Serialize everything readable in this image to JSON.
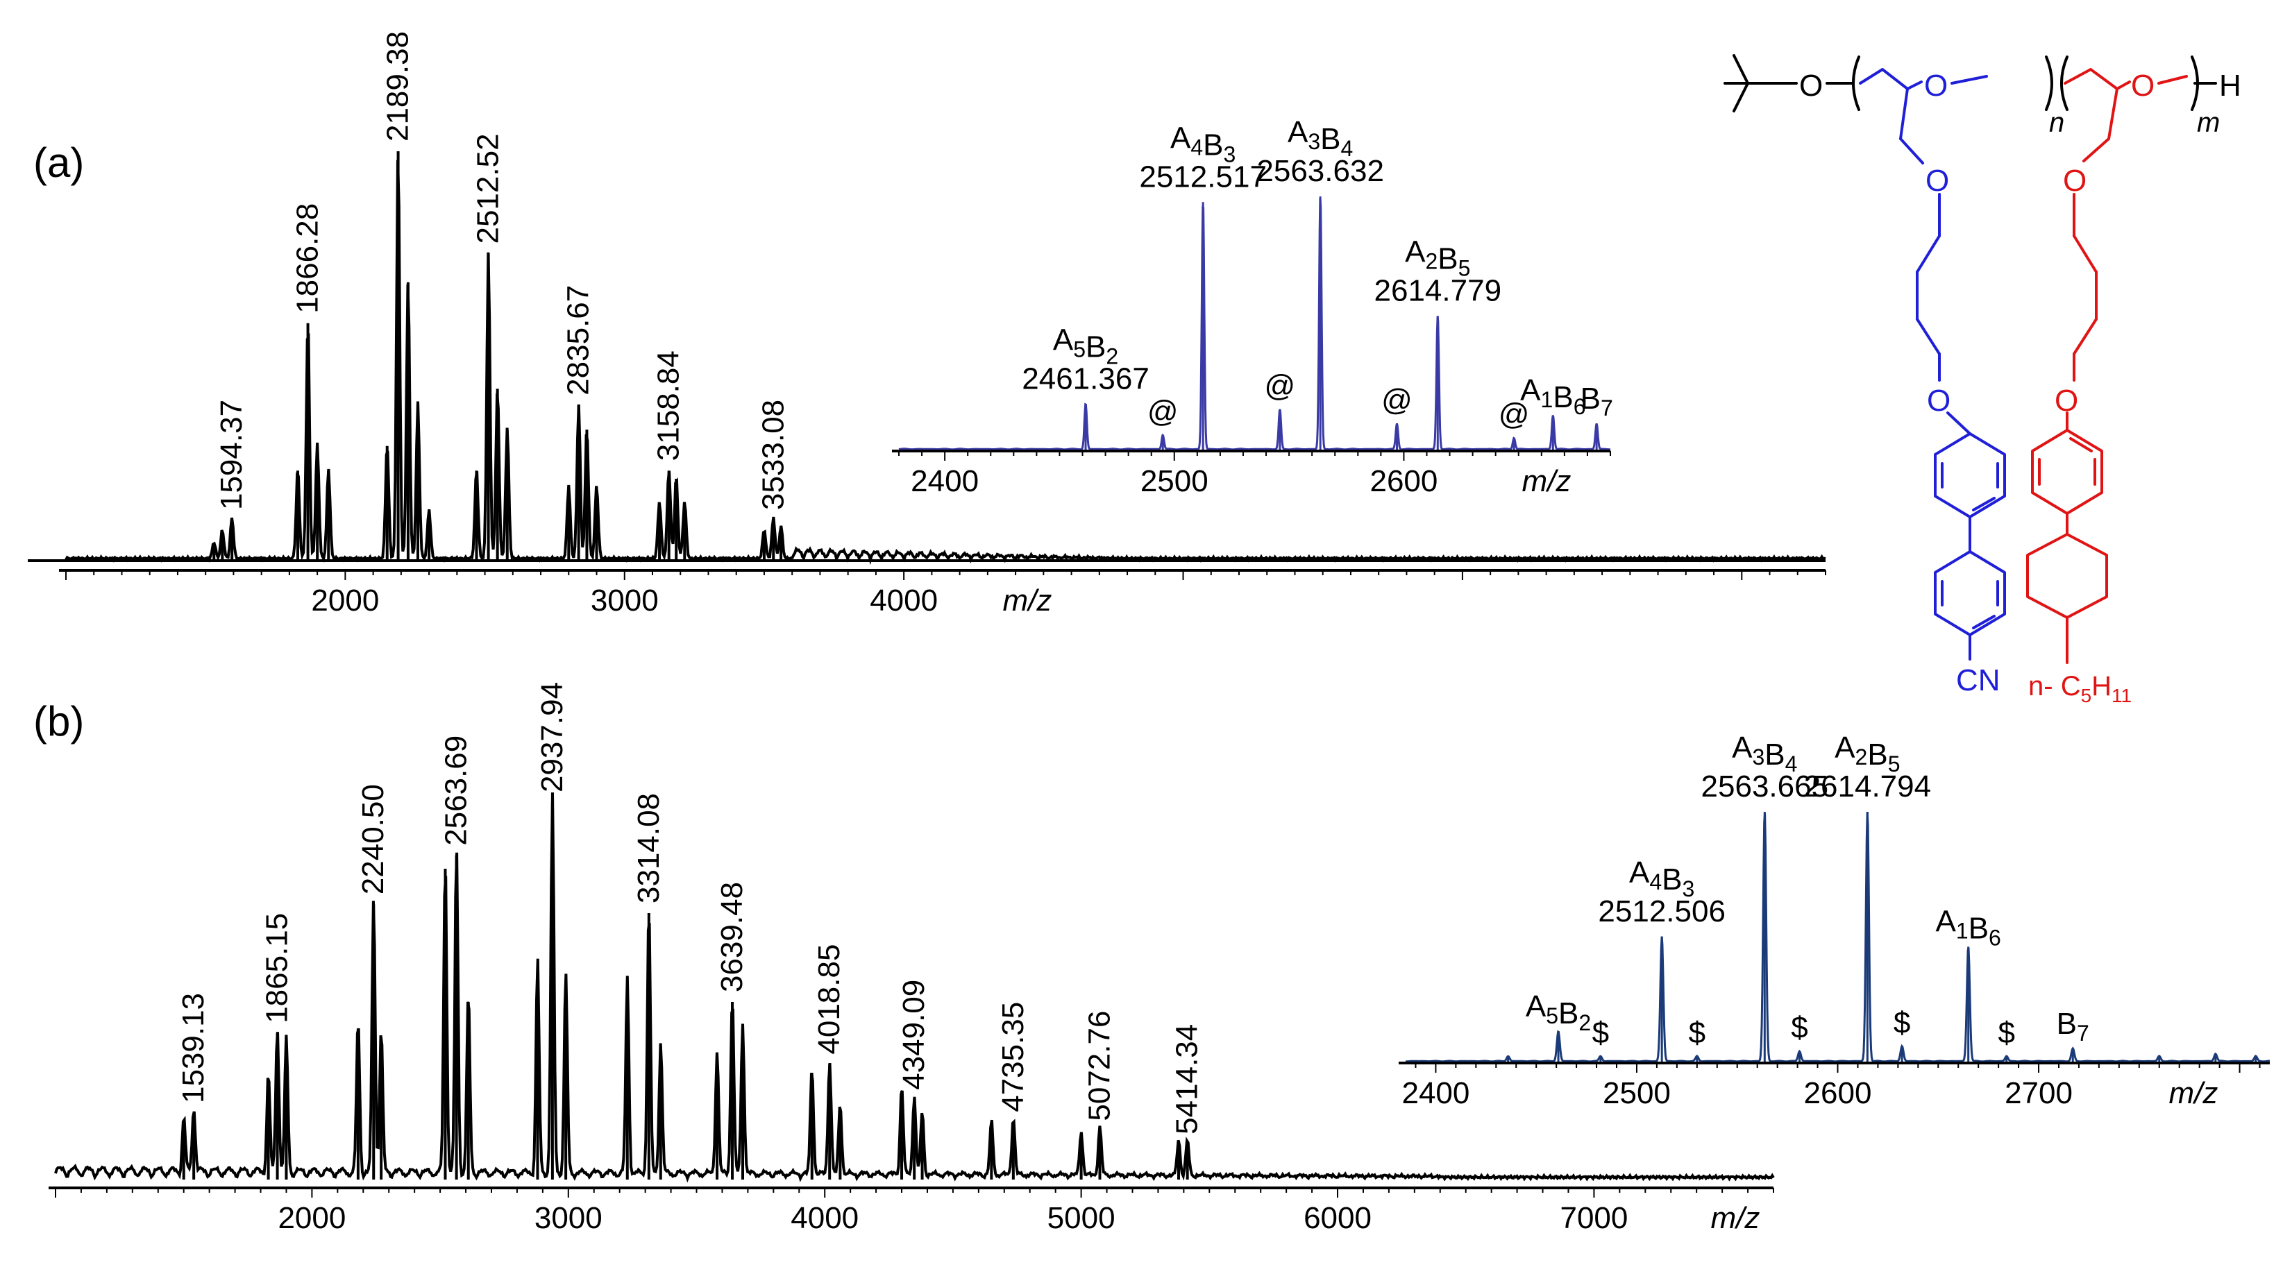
{
  "panels": {
    "a": {
      "label": "(a)"
    },
    "b": {
      "label": "(b)"
    }
  },
  "colors": {
    "main_spectrum": "#000000",
    "inset_a": "#3a3aa6",
    "inset_b": "#1a3a78",
    "blue_segment": "#1f1fd8",
    "red_segment": "#e01414"
  },
  "structure": {
    "end_group_O": "O",
    "ether_O": "O",
    "terminal_H": "H",
    "subscript_n": "n",
    "subscript_m": "m",
    "cyano": "CN",
    "alkyl_prefix": "n- ",
    "alkyl_C": "C",
    "alkyl_C_sub": "5",
    "alkyl_H": "H",
    "alkyl_H_sub": "11"
  },
  "chart_data": [
    {
      "id": "a_main",
      "type": "line",
      "title": "",
      "xlabel": "m/z",
      "ylabel": "",
      "xlim": [
        1000,
        7300
      ],
      "ylim": [
        0,
        100
      ],
      "xticks": [
        2000,
        3000,
        4000
      ],
      "peaks": [
        [
          1530,
          4
        ],
        [
          1560,
          7
        ],
        [
          1594.37,
          10
        ],
        [
          1830,
          22
        ],
        [
          1866.28,
          58
        ],
        [
          1900,
          28
        ],
        [
          1940,
          22
        ],
        [
          2150,
          28
        ],
        [
          2189.38,
          100
        ],
        [
          2225,
          68
        ],
        [
          2260,
          38
        ],
        [
          2300,
          12
        ],
        [
          2470,
          22
        ],
        [
          2512.52,
          75
        ],
        [
          2545,
          42
        ],
        [
          2580,
          32
        ],
        [
          2800,
          18
        ],
        [
          2835.67,
          38
        ],
        [
          2865,
          32
        ],
        [
          2900,
          18
        ],
        [
          3125,
          14
        ],
        [
          3158.84,
          22
        ],
        [
          3185,
          20
        ],
        [
          3215,
          14
        ],
        [
          3500,
          7
        ],
        [
          3533.08,
          10
        ],
        [
          3560,
          8
        ]
      ],
      "labels": [
        {
          "x": 1594.37,
          "text": "1594.37"
        },
        {
          "x": 1866.28,
          "text": "1866.28"
        },
        {
          "x": 2189.38,
          "text": "2189.38"
        },
        {
          "x": 2512.52,
          "text": "2512.52"
        },
        {
          "x": 2835.67,
          "text": "2835.67"
        },
        {
          "x": 3158.84,
          "text": "3158.84"
        },
        {
          "x": 3533.08,
          "text": "3533.08"
        }
      ]
    },
    {
      "id": "a_inset",
      "type": "line",
      "xlabel": "m/z",
      "xlim": [
        2380,
        2690
      ],
      "ylim": [
        0,
        100
      ],
      "xticks": [
        2400,
        2500,
        2600
      ],
      "peaks": [
        [
          2461.367,
          16
        ],
        [
          2495,
          5
        ],
        [
          2512.517,
          87
        ],
        [
          2546,
          14
        ],
        [
          2563.632,
          89
        ],
        [
          2597,
          9
        ],
        [
          2614.779,
          47
        ],
        [
          2648,
          4
        ],
        [
          2665,
          12
        ],
        [
          2684,
          9
        ]
      ],
      "labels": [
        {
          "x": 2461.367,
          "ion": "A5B2",
          "mass": "2461.367"
        },
        {
          "x": 2512.517,
          "ion": "A4B3",
          "mass": "2512.517"
        },
        {
          "x": 2563.632,
          "ion": "A3B4",
          "mass": "2563.632"
        },
        {
          "x": 2614.779,
          "ion": "A2B5",
          "mass": "2614.779"
        },
        {
          "x": 2665,
          "ion": "A1B6",
          "mass": ""
        },
        {
          "x": 2684,
          "ion": "B7",
          "mass": ""
        }
      ],
      "markers": [
        {
          "x": 2495,
          "text": "@"
        },
        {
          "x": 2546,
          "text": "@"
        },
        {
          "x": 2597,
          "text": "@"
        },
        {
          "x": 2648,
          "text": "@"
        }
      ]
    },
    {
      "id": "b_main",
      "type": "line",
      "xlabel": "m/z",
      "xlim": [
        1000,
        7700
      ],
      "ylim": [
        0,
        100
      ],
      "xticks": [
        2000,
        3000,
        4000,
        5000,
        6000,
        7000
      ],
      "peaks": [
        [
          1500,
          12
        ],
        [
          1539.13,
          15
        ],
        [
          1830,
          22
        ],
        [
          1865.15,
          33
        ],
        [
          1900,
          30
        ],
        [
          2180,
          34
        ],
        [
          2240.5,
          62
        ],
        [
          2270,
          32
        ],
        [
          2520,
          70
        ],
        [
          2563.69,
          73
        ],
        [
          2610,
          40
        ],
        [
          2880,
          48
        ],
        [
          2937.94,
          85
        ],
        [
          2990,
          45
        ],
        [
          3230,
          44
        ],
        [
          3314.08,
          60
        ],
        [
          3360,
          30
        ],
        [
          3580,
          28
        ],
        [
          3639.48,
          40
        ],
        [
          3680,
          34
        ],
        [
          3950,
          24
        ],
        [
          4018.85,
          26
        ],
        [
          4060,
          16
        ],
        [
          4300,
          20
        ],
        [
          4349.09,
          18
        ],
        [
          4380,
          14
        ],
        [
          4650,
          12
        ],
        [
          4735.35,
          13
        ],
        [
          5000,
          10
        ],
        [
          5072.76,
          11
        ],
        [
          5380,
          8
        ],
        [
          5414.34,
          8
        ]
      ],
      "labels": [
        {
          "x": 1539.13,
          "text": "1539.13"
        },
        {
          "x": 1865.15,
          "text": "1865.15"
        },
        {
          "x": 2240.5,
          "text": "2240.50"
        },
        {
          "x": 2563.69,
          "text": "2563.69"
        },
        {
          "x": 2937.94,
          "text": "2937.94"
        },
        {
          "x": 3314.08,
          "text": "3314.08"
        },
        {
          "x": 3639.48,
          "text": "3639.48"
        },
        {
          "x": 4018.85,
          "text": "4018.85"
        },
        {
          "x": 4349.09,
          "text": "4349.09"
        },
        {
          "x": 4735.35,
          "text": "4735.35"
        },
        {
          "x": 5072.76,
          "text": "5072.76"
        },
        {
          "x": 5414.34,
          "text": "5414.34"
        }
      ]
    },
    {
      "id": "b_inset",
      "type": "line",
      "xlabel": "m/z",
      "xlim": [
        2385,
        2815
      ],
      "ylim": [
        0,
        100
      ],
      "xticks": [
        2400,
        2500,
        2600,
        2700
      ],
      "peaks": [
        [
          2436,
          2
        ],
        [
          2461,
          12
        ],
        [
          2482,
          2
        ],
        [
          2512.506,
          50
        ],
        [
          2530,
          2
        ],
        [
          2563.665,
          100
        ],
        [
          2581,
          4
        ],
        [
          2614.794,
          100
        ],
        [
          2632,
          6
        ],
        [
          2665,
          46
        ],
        [
          2684,
          2
        ],
        [
          2717,
          5
        ],
        [
          2760,
          2
        ],
        [
          2788,
          3
        ],
        [
          2808,
          2
        ]
      ],
      "labels": [
        {
          "x": 2461,
          "ion": "A5B2",
          "mass": ""
        },
        {
          "x": 2512.506,
          "ion": "A4B3",
          "mass": "2512.506"
        },
        {
          "x": 2563.665,
          "ion": "A3B4",
          "mass": "2563.665"
        },
        {
          "x": 2614.794,
          "ion": "A2B5",
          "mass": "2614.794"
        },
        {
          "x": 2665,
          "ion": "A1B6",
          "mass": ""
        },
        {
          "x": 2717,
          "ion": "B7",
          "mass": ""
        }
      ],
      "markers": [
        {
          "x": 2482,
          "text": "$"
        },
        {
          "x": 2530,
          "text": "$"
        },
        {
          "x": 2581,
          "text": "$"
        },
        {
          "x": 2632,
          "text": "$"
        },
        {
          "x": 2684,
          "text": "$"
        }
      ]
    }
  ]
}
